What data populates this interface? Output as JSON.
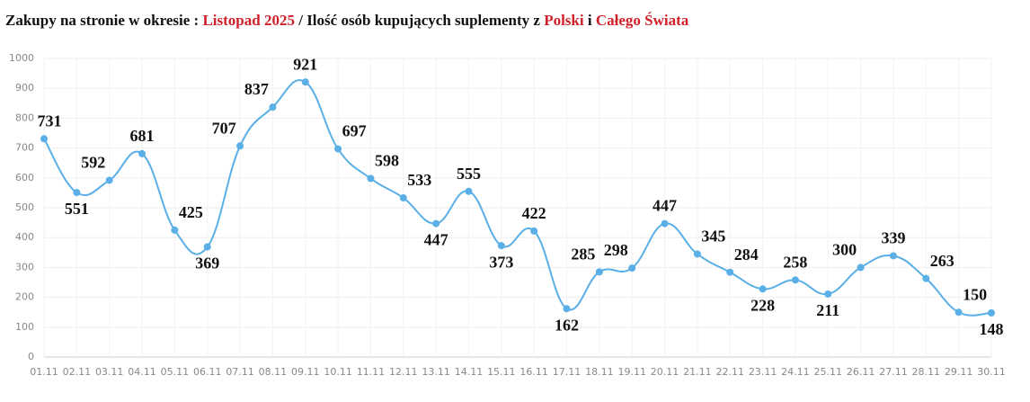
{
  "chart_data": {
    "type": "line",
    "title": [
      {
        "text": "Zakupy na stronie w okresie : ",
        "color": "#111111"
      },
      {
        "text": "Listopad 2025",
        "color": "#d0202a"
      },
      {
        "text": " / Ilość osób kupujących suplementy z ",
        "color": "#111111"
      },
      {
        "text": "Polski",
        "color": "#d0202a"
      },
      {
        "text": " i ",
        "color": "#111111"
      },
      {
        "text": "Całego Świata",
        "color": "#d0202a"
      }
    ],
    "categories": [
      "01.11",
      "02.11",
      "03.11",
      "04.11",
      "05.11",
      "06.11",
      "07.11",
      "08.11",
      "09.11",
      "10.11",
      "11.11",
      "12.11",
      "13.11",
      "14.11",
      "15.11",
      "16.11",
      "17.11",
      "18.11",
      "19.11",
      "20.11",
      "21.11",
      "22.11",
      "23.11",
      "24.11",
      "25.11",
      "26.11",
      "27.11",
      "28.11",
      "29.11",
      "30.11"
    ],
    "values": [
      731,
      551,
      592,
      681,
      425,
      369,
      707,
      837,
      921,
      697,
      598,
      533,
      447,
      555,
      373,
      422,
      162,
      285,
      298,
      447,
      345,
      284,
      228,
      258,
      211,
      300,
      339,
      263,
      150,
      148
    ],
    "color": "#5aafe6",
    "ylim": [
      0,
      1000
    ],
    "yticks": [
      0,
      100,
      200,
      300,
      400,
      500,
      600,
      700,
      800,
      900,
      1000
    ],
    "grid": true
  }
}
